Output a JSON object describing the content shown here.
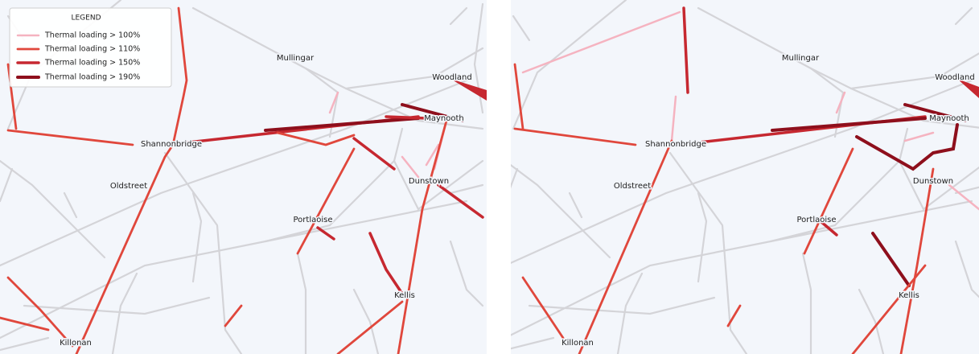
{
  "legend": {
    "title": "LEGEND",
    "entries": [
      "Thermal loading > 100%",
      "Thermal loading > 110%",
      "Thermal loading > 150%",
      "Thermal loading > 190%"
    ]
  },
  "panels": [
    {
      "labels": [
        "Mullingar",
        "Woodland",
        "Maynooth",
        "Shannonbridge",
        "Oldstreet",
        "Dunstown",
        "Portlaoise",
        "Kellis",
        "Killonan"
      ]
    },
    {
      "labels": [
        "Mullingar",
        "Woodland",
        "Maynooth",
        "Shannonbridge",
        "Oldstreet",
        "Dunstown",
        "Portlaoise",
        "Kellis",
        "Killonan"
      ]
    }
  ]
}
